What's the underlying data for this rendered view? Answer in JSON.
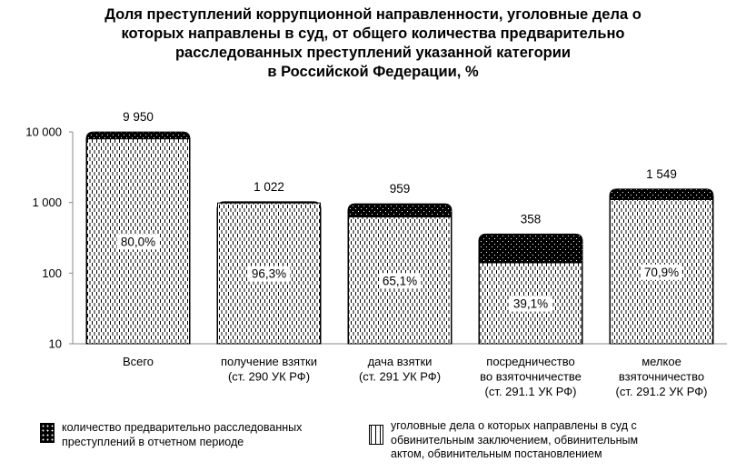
{
  "chart_data": {
    "type": "bar",
    "title_lines": [
      "Доля преступлений коррупционной направленности, уголовные дела о",
      "которых направлены в суд, от общего количества предварительно",
      "расследованных преступлений указанной категории",
      "в Российской Федерации, %"
    ],
    "y_scale": "log",
    "ylim": [
      10,
      10000
    ],
    "y_ticks": [
      {
        "value": 10,
        "label": "10"
      },
      {
        "value": 100,
        "label": "100"
      },
      {
        "value": 1000,
        "label": "1 000"
      },
      {
        "value": 10000,
        "label": "10 000"
      }
    ],
    "categories": [
      {
        "lines": [
          "Всего"
        ]
      },
      {
        "lines": [
          "получение взятки",
          "(ст. 290 УК РФ)"
        ]
      },
      {
        "lines": [
          "дача взятки",
          "(ст. 291 УК РФ)"
        ]
      },
      {
        "lines": [
          "посредничество",
          "во взяточничестве",
          "(ст. 291.1 УК РФ)"
        ]
      },
      {
        "lines": [
          "мелкое",
          "взяточничество",
          "(ст. 291.2 УК РФ)"
        ]
      }
    ],
    "series": [
      {
        "name_lines": [
          "количество предварительно расследованных",
          "преступлений в отчетном периоде"
        ],
        "values": [
          9950,
          1022,
          959,
          358,
          1549
        ],
        "value_labels": [
          "9 950",
          "1 022",
          "959",
          "358",
          "1 549"
        ],
        "color": "#000000"
      },
      {
        "name_lines": [
          "уголовные дела о которых направлены в суд с",
          "обвинительным заключением, обвинительным",
          "актом, обвинительным постановлением"
        ],
        "share_percent": [
          80.0,
          96.3,
          65.1,
          39.1,
          70.9
        ],
        "share_labels": [
          "80,0%",
          "96,3%",
          "65,1%",
          "39,1%",
          "70,9%"
        ],
        "color": "#ffffff"
      }
    ],
    "grid": false,
    "legend_position": "bottom"
  }
}
